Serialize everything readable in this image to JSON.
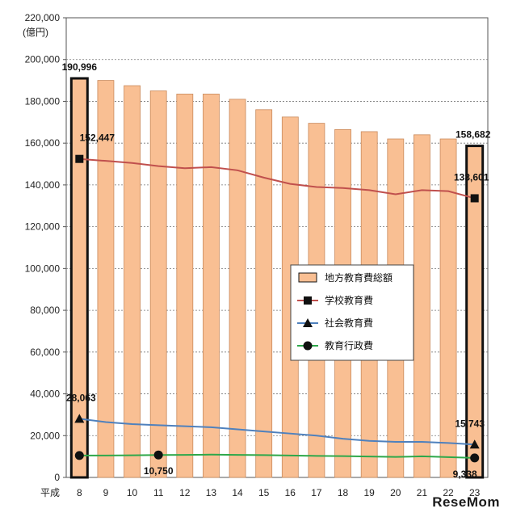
{
  "chart_data": {
    "type": "bar",
    "unit_label": "(億円)",
    "x_prefix": "平成",
    "categories": [
      "8",
      "9",
      "10",
      "11",
      "12",
      "13",
      "14",
      "15",
      "16",
      "17",
      "18",
      "19",
      "20",
      "21",
      "22",
      "23"
    ],
    "ylim": [
      0,
      220000
    ],
    "yticks": [
      0,
      20000,
      40000,
      60000,
      80000,
      100000,
      120000,
      140000,
      160000,
      180000,
      200000,
      220000
    ],
    "ytick_labels": [
      "0",
      "20,000",
      "40,000",
      "60,000",
      "80,000",
      "100,000",
      "120,000",
      "140,000",
      "160,000",
      "180,000",
      "200,000",
      "220,000"
    ],
    "grid": true,
    "legend_position": "right-middle",
    "series": [
      {
        "name": "地方教育費総額",
        "kind": "bar",
        "color": "#f9bf93",
        "values": [
          190996,
          190000,
          187500,
          185000,
          183500,
          183500,
          181000,
          176000,
          172500,
          169500,
          166500,
          165500,
          162000,
          164000,
          162000,
          158682
        ]
      },
      {
        "name": "学校教育費",
        "kind": "line",
        "color": "#c0504d",
        "marker": "square",
        "values": [
          152447,
          151500,
          150500,
          149000,
          148000,
          148500,
          147000,
          143500,
          140500,
          139000,
          138500,
          137500,
          135500,
          137500,
          137000,
          133601
        ]
      },
      {
        "name": "社会教育費",
        "kind": "line",
        "color": "#4f81bd",
        "marker": "triangle",
        "values": [
          28063,
          26500,
          25500,
          25000,
          24500,
          24000,
          23000,
          22000,
          21000,
          20000,
          18500,
          17500,
          17000,
          17000,
          16500,
          15743
        ]
      },
      {
        "name": "教育行政費",
        "kind": "line",
        "color": "#2ea84a",
        "marker": "circle",
        "values": [
          10500,
          10500,
          10600,
          10750,
          10800,
          10900,
          10800,
          10700,
          10500,
          10300,
          10200,
          10000,
          9800,
          10100,
          9700,
          9338
        ]
      }
    ],
    "data_labels": [
      {
        "series": 0,
        "index": 0,
        "text": "190,996"
      },
      {
        "series": 0,
        "index": 15,
        "text": "158,682"
      },
      {
        "series": 1,
        "index": 0,
        "text": "152,447"
      },
      {
        "series": 1,
        "index": 15,
        "text": "133,601"
      },
      {
        "series": 2,
        "index": 0,
        "text": "28,063"
      },
      {
        "series": 2,
        "index": 15,
        "text": "15,743"
      },
      {
        "series": 3,
        "index": 3,
        "text": "10,750"
      },
      {
        "series": 3,
        "index": 15,
        "text": "9,338"
      }
    ]
  },
  "watermark": "ReseMom"
}
